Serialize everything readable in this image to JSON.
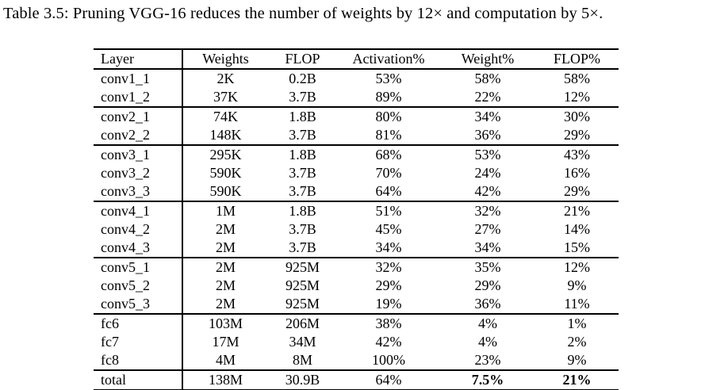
{
  "caption": "Table 3.5: Pruning VGG-16 reduces the number of weights by 12× and computation by 5×.",
  "chart_data": {
    "type": "table",
    "title": "Pruning VGG-16 layer statistics",
    "columns": [
      "Layer",
      "Weights",
      "FLOP",
      "Activation%",
      "Weight%",
      "FLOP%"
    ],
    "rows": [
      [
        "conv1_1",
        "2K",
        "0.2B",
        "53%",
        "58%",
        "58%"
      ],
      [
        "conv1_2",
        "37K",
        "3.7B",
        "89%",
        "22%",
        "12%"
      ],
      [
        "conv2_1",
        "74K",
        "1.8B",
        "80%",
        "34%",
        "30%"
      ],
      [
        "conv2_2",
        "148K",
        "3.7B",
        "81%",
        "36%",
        "29%"
      ],
      [
        "conv3_1",
        "295K",
        "1.8B",
        "68%",
        "53%",
        "43%"
      ],
      [
        "conv3_2",
        "590K",
        "3.7B",
        "70%",
        "24%",
        "16%"
      ],
      [
        "conv3_3",
        "590K",
        "3.7B",
        "64%",
        "42%",
        "29%"
      ],
      [
        "conv4_1",
        "1M",
        "1.8B",
        "51%",
        "32%",
        "21%"
      ],
      [
        "conv4_2",
        "2M",
        "3.7B",
        "45%",
        "27%",
        "14%"
      ],
      [
        "conv4_3",
        "2M",
        "3.7B",
        "34%",
        "34%",
        "15%"
      ],
      [
        "conv5_1",
        "2M",
        "925M",
        "32%",
        "35%",
        "12%"
      ],
      [
        "conv5_2",
        "2M",
        "925M",
        "29%",
        "29%",
        "9%"
      ],
      [
        "conv5_3",
        "2M",
        "925M",
        "19%",
        "36%",
        "11%"
      ],
      [
        "fc6",
        "103M",
        "206M",
        "38%",
        "4%",
        "1%"
      ],
      [
        "fc7",
        "17M",
        "34M",
        "42%",
        "4%",
        "2%"
      ],
      [
        "fc8",
        "4M",
        "8M",
        "100%",
        "23%",
        "9%"
      ],
      [
        "total",
        "138M",
        "30.9B",
        "64%",
        "7.5%",
        "21%"
      ]
    ],
    "emphasis": {
      "bold_cells": [
        {
          "row": "total",
          "column": "Weight%",
          "value": "7.5%"
        },
        {
          "row": "total",
          "column": "FLOP%",
          "value": "21%"
        }
      ]
    },
    "layout_hints": {
      "group_separator_rows": [
        "conv2_1",
        "conv3_1",
        "conv4_1",
        "conv5_1",
        "fc6",
        "total"
      ],
      "vertical_rule_after_column": "Layer"
    }
  }
}
